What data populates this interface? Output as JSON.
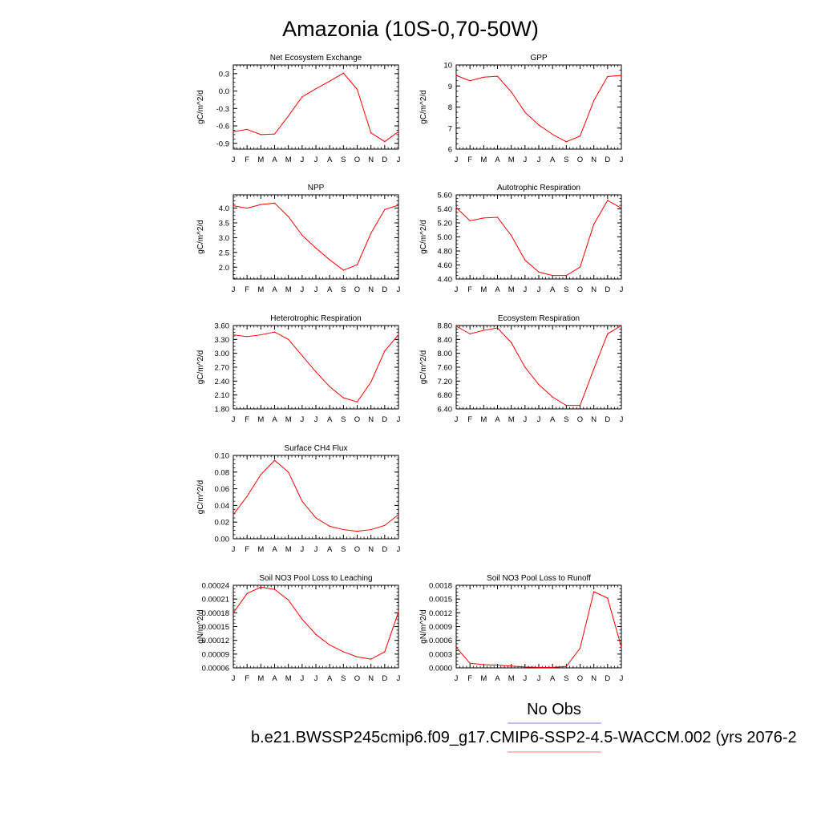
{
  "page_title": "Amazonia (10S-0,70-50W)",
  "legend": {
    "obs_label": "No Obs",
    "obs_color": "#7777ee",
    "case_label": "b.e21.BWSSP245cmip6.f09_g17.CMIP6-SSP2-4.5-WACCM.002 (yrs 2076-2",
    "case_color": "#ff7777"
  },
  "line_color": "#ff0000",
  "chart_data": [
    {
      "type": "line",
      "title": "Net Ecosystem Exchange",
      "ylabel": "gC/m^2/d",
      "x": [
        "J",
        "F",
        "M",
        "A",
        "M",
        "J",
        "J",
        "A",
        "S",
        "O",
        "N",
        "D",
        "J"
      ],
      "ylim": [
        -1.0,
        0.45
      ],
      "yticks": [
        "0.3",
        "0.0",
        "-0.3",
        "-0.6",
        "-0.9"
      ],
      "yticks_values": [
        0.3,
        0.0,
        -0.3,
        -0.6,
        -0.9
      ],
      "series": [
        {
          "values": [
            -0.7,
            -0.66,
            -0.75,
            -0.74,
            -0.43,
            -0.1,
            0.04,
            0.17,
            0.31,
            0.03,
            -0.72,
            -0.87,
            -0.7
          ]
        }
      ]
    },
    {
      "type": "line",
      "title": "GPP",
      "ylabel": "gC/m^2/d",
      "x": [
        "J",
        "F",
        "M",
        "A",
        "M",
        "J",
        "J",
        "A",
        "S",
        "O",
        "N",
        "D",
        "J"
      ],
      "ylim": [
        6,
        10
      ],
      "yticks": [
        "10",
        "9",
        "8",
        "7",
        "6"
      ],
      "yticks_values": [
        10,
        9,
        8,
        7,
        6
      ],
      "series": [
        {
          "values": [
            9.5,
            9.25,
            9.42,
            9.46,
            8.72,
            7.75,
            7.15,
            6.7,
            6.35,
            6.62,
            8.3,
            9.45,
            9.5
          ]
        }
      ]
    },
    {
      "type": "line",
      "title": "NPP",
      "ylabel": "gC/m^2/d",
      "x": [
        "J",
        "F",
        "M",
        "A",
        "M",
        "J",
        "J",
        "A",
        "S",
        "O",
        "N",
        "D",
        "J"
      ],
      "ylim": [
        1.6,
        4.45
      ],
      "yticks": [
        "4.0",
        "3.5",
        "3.0",
        "2.5",
        "2.0"
      ],
      "yticks_values": [
        4.0,
        3.5,
        3.0,
        2.5,
        2.0
      ],
      "series": [
        {
          "values": [
            4.08,
            4.0,
            4.12,
            4.17,
            3.71,
            3.08,
            2.65,
            2.25,
            1.9,
            2.08,
            3.15,
            3.95,
            4.1
          ]
        }
      ]
    },
    {
      "type": "line",
      "title": "Autotrophic Respiration",
      "ylabel": "gC/m^2/d",
      "x": [
        "J",
        "F",
        "M",
        "A",
        "M",
        "J",
        "J",
        "A",
        "S",
        "O",
        "N",
        "D",
        "J"
      ],
      "ylim": [
        4.4,
        5.6
      ],
      "yticks": [
        "5.60",
        "5.40",
        "5.20",
        "5.00",
        "4.80",
        "4.60",
        "4.40"
      ],
      "yticks_values": [
        5.6,
        5.4,
        5.2,
        5.0,
        4.8,
        4.6,
        4.4
      ],
      "series": [
        {
          "values": [
            5.42,
            5.23,
            5.27,
            5.28,
            5.02,
            4.67,
            4.5,
            4.45,
            4.45,
            4.57,
            5.18,
            5.52,
            5.41
          ]
        }
      ]
    },
    {
      "type": "line",
      "title": "Heterotrophic Respiration",
      "ylabel": "gC/m^2/d",
      "x": [
        "J",
        "F",
        "M",
        "A",
        "M",
        "J",
        "J",
        "A",
        "S",
        "O",
        "N",
        "D",
        "J"
      ],
      "ylim": [
        1.8,
        3.6
      ],
      "yticks": [
        "3.60",
        "3.30",
        "3.00",
        "2.70",
        "2.40",
        "2.10",
        "1.80"
      ],
      "yticks_values": [
        3.6,
        3.3,
        3.0,
        2.7,
        2.4,
        2.1,
        1.8
      ],
      "series": [
        {
          "values": [
            3.4,
            3.36,
            3.4,
            3.46,
            3.3,
            2.95,
            2.6,
            2.28,
            2.04,
            1.95,
            2.38,
            3.05,
            3.4
          ]
        }
      ]
    },
    {
      "type": "line",
      "title": "Ecosystem Respiration",
      "ylabel": "gC/m^2/d",
      "x": [
        "J",
        "F",
        "M",
        "A",
        "M",
        "J",
        "J",
        "A",
        "S",
        "O",
        "N",
        "D",
        "J"
      ],
      "ylim": [
        6.4,
        8.8
      ],
      "yticks": [
        "8.80",
        "8.40",
        "8.00",
        "7.60",
        "7.20",
        "6.80",
        "6.40"
      ],
      "yticks_values": [
        8.8,
        8.4,
        8.0,
        7.6,
        7.2,
        6.8,
        6.4
      ],
      "series": [
        {
          "values": [
            8.78,
            8.56,
            8.66,
            8.73,
            8.31,
            7.6,
            7.1,
            6.74,
            6.5,
            6.5,
            7.55,
            8.56,
            8.8
          ]
        }
      ]
    },
    {
      "type": "line",
      "title": "Surface CH4 Flux",
      "ylabel": "gC/m^2/d",
      "x": [
        "J",
        "F",
        "M",
        "A",
        "M",
        "J",
        "J",
        "A",
        "S",
        "O",
        "N",
        "D",
        "J"
      ],
      "ylim": [
        0.0,
        0.1
      ],
      "yticks": [
        "0.10",
        "0.08",
        "0.06",
        "0.04",
        "0.02",
        "0.00"
      ],
      "yticks_values": [
        0.1,
        0.08,
        0.06,
        0.04,
        0.02,
        0.0
      ],
      "series": [
        {
          "values": [
            0.029,
            0.051,
            0.077,
            0.094,
            0.08,
            0.045,
            0.025,
            0.015,
            0.011,
            0.009,
            0.011,
            0.016,
            0.029
          ]
        }
      ]
    },
    {
      "type": "line",
      "title": "Soil NO3 Pool Loss to Leaching",
      "ylabel": "gN/m^2/d",
      "x": [
        "J",
        "F",
        "M",
        "A",
        "M",
        "J",
        "J",
        "A",
        "S",
        "O",
        "N",
        "D",
        "J"
      ],
      "ylim": [
        6e-05,
        0.00024
      ],
      "yticks": [
        "0.00024",
        "0.00021",
        "0.00018",
        "0.00015",
        "0.00012",
        "0.00009",
        "0.00006"
      ],
      "yticks_values": [
        0.00024,
        0.00021,
        0.00018,
        0.00015,
        0.00012,
        9e-05,
        6e-05
      ],
      "series": [
        {
          "values": [
            0.00018,
            0.000222,
            0.000236,
            0.000231,
            0.000208,
            0.000166,
            0.000133,
            0.00011,
            9.5e-05,
            8.4e-05,
            7.9e-05,
            9.5e-05,
            0.000182
          ]
        }
      ]
    },
    {
      "type": "line",
      "title": "Soil NO3 Pool Loss to Runoff",
      "ylabel": "gN/m^2/d",
      "x": [
        "J",
        "F",
        "M",
        "A",
        "M",
        "J",
        "J",
        "A",
        "S",
        "O",
        "N",
        "D",
        "J"
      ],
      "ylim": [
        0.0,
        0.0018
      ],
      "yticks": [
        "0.0018",
        "0.0015",
        "0.0012",
        "0.0009",
        "0.0006",
        "0.0003",
        "0.0000"
      ],
      "yticks_values": [
        0.0018,
        0.0015,
        0.0012,
        0.0009,
        0.0006,
        0.0003,
        0.0
      ],
      "series": [
        {
          "values": [
            0.00045,
            0.0001,
            7e-05,
            6e-05,
            4e-05,
            2e-05,
            1e-05,
            1e-05,
            3e-05,
            0.00043,
            0.00166,
            0.00152,
            0.00045
          ]
        }
      ]
    }
  ]
}
